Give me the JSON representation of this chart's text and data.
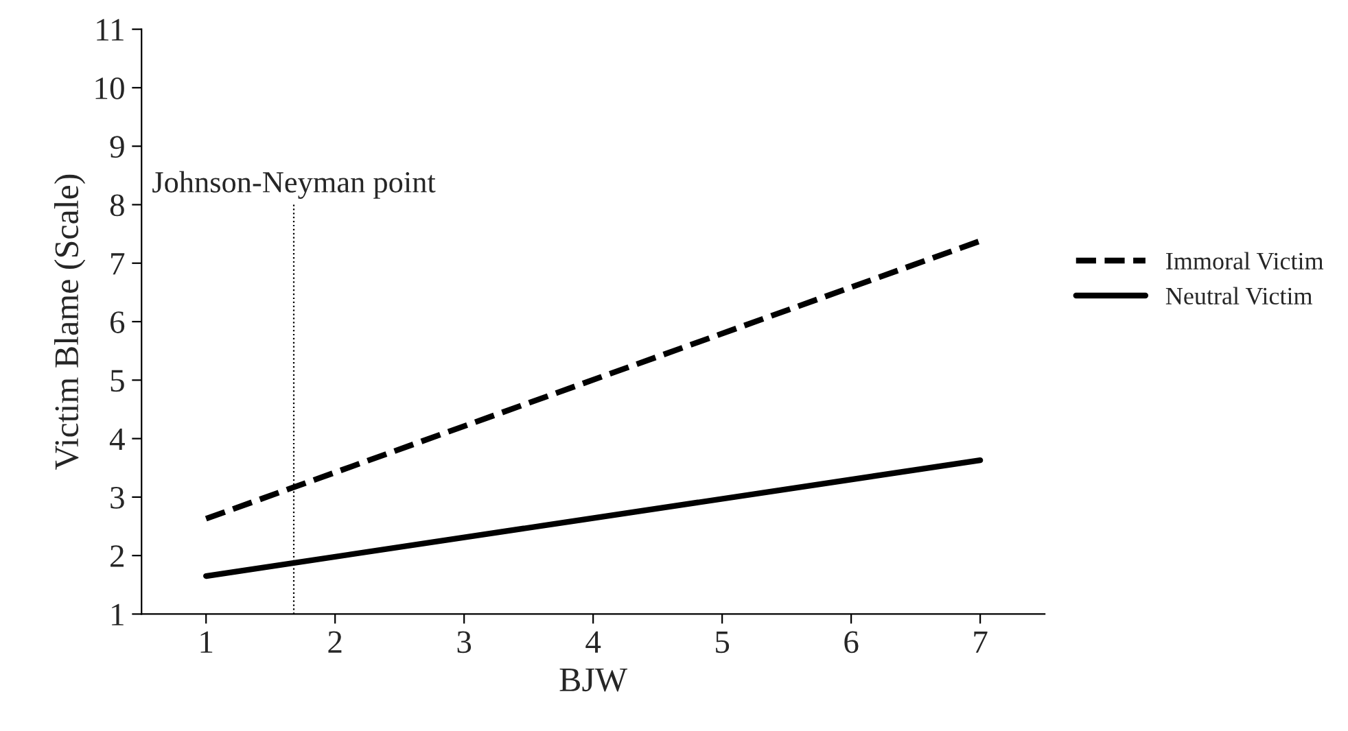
{
  "chart_data": {
    "type": "line",
    "xlabel": "BJW",
    "ylabel": "Victim Blame (Scale)",
    "x": [
      1,
      7
    ],
    "series": [
      {
        "name": "Immoral Victim",
        "color": "#000000",
        "values": [
          2.63,
          7.38
        ],
        "line_style": "dashed"
      },
      {
        "name": "Neutral Victim",
        "color": "#000000",
        "values": [
          1.65,
          3.63
        ],
        "line_style": "solid"
      }
    ],
    "xlim": [
      0.5,
      7.5
    ],
    "xticks": [
      1,
      2,
      3,
      4,
      5,
      6,
      7
    ],
    "ylim": [
      1,
      11
    ],
    "yticks": [
      1,
      2,
      3,
      4,
      5,
      6,
      7,
      8,
      9,
      10,
      11
    ],
    "ref_lines": [
      {
        "axis": "x",
        "value": 1.68,
        "label": "Johnson-Neyman point",
        "color": "#000000",
        "line_style": "dotted"
      }
    ],
    "grid": false,
    "legend": "right",
    "marker": "none"
  }
}
